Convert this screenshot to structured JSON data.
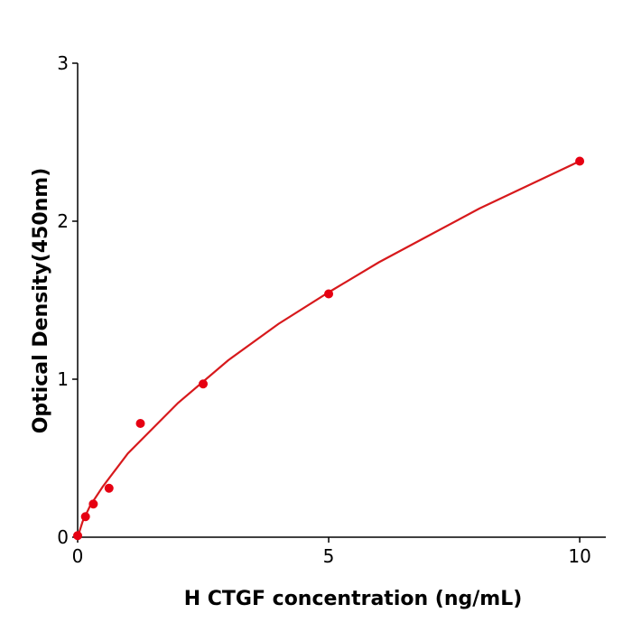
{
  "chart_data": {
    "type": "scatter",
    "x_label": "H  CTGF concentration (ng/mL)",
    "y_label": "Optical Density(450nm)",
    "xlim": [
      0,
      10.52
    ],
    "ylim": [
      0,
      3
    ],
    "xticks": [
      0,
      5,
      10
    ],
    "yticks": [
      0,
      1,
      2,
      3
    ],
    "series": [
      {
        "type": "scatter",
        "color": "#e60012",
        "x": [
          0,
          0.156,
          0.3125,
          0.625,
          1.25,
          2.5,
          5,
          10
        ],
        "values": [
          0.01,
          0.13,
          0.21,
          0.31,
          0.72,
          0.97,
          1.54,
          2.38
        ]
      },
      {
        "type": "line",
        "color": "#d7191c",
        "x": [
          0,
          0.1,
          0.25,
          0.5,
          1,
          2,
          3,
          4,
          5,
          6,
          7,
          8,
          9,
          10
        ],
        "values": [
          0,
          0.1,
          0.2,
          0.32,
          0.53,
          0.85,
          1.12,
          1.35,
          1.55,
          1.74,
          1.91,
          2.08,
          2.23,
          2.38
        ]
      }
    ]
  }
}
